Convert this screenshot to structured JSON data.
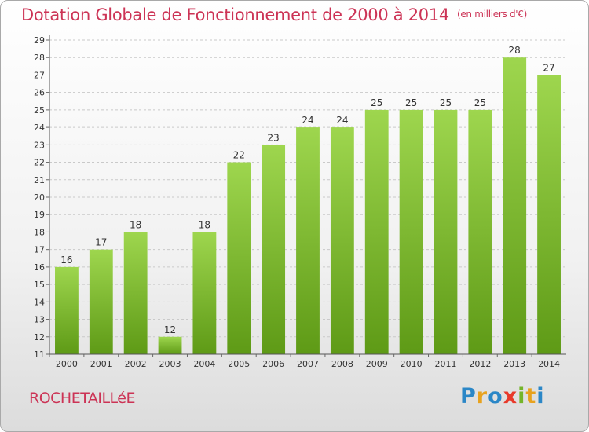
{
  "chart_data": {
    "type": "bar",
    "title": "Dotation Globale de Fonctionnement de 2000 à 2014",
    "subtitle": "(en milliers d'€)",
    "categories": [
      "2000",
      "2001",
      "2002",
      "2003",
      "2004",
      "2005",
      "2006",
      "2007",
      "2008",
      "2009",
      "2010",
      "2011",
      "2012",
      "2013",
      "2014"
    ],
    "values": [
      16,
      17,
      18,
      12,
      18,
      22,
      23,
      24,
      24,
      25,
      25,
      25,
      25,
      28,
      27
    ],
    "ylim": [
      11,
      29
    ],
    "yticks": [
      11,
      12,
      13,
      14,
      15,
      16,
      17,
      18,
      19,
      20,
      21,
      22,
      23,
      24,
      25,
      26,
      27,
      28,
      29
    ],
    "grid": true,
    "bar_color": "#7cbd2a",
    "bar_color_light": "#9ed64e",
    "bar_color_dark": "#5e9a16"
  },
  "footer": {
    "commune": "ROCHETAILLéE",
    "logo_letters": [
      "P",
      "r",
      "o",
      "x",
      "i",
      "t",
      "i"
    ],
    "logo_colors": [
      "#2b87c7",
      "#e8a21e",
      "#2b87c7",
      "#e83a2b",
      "#74b52a",
      "#e8a21e",
      "#2b87c7"
    ]
  }
}
